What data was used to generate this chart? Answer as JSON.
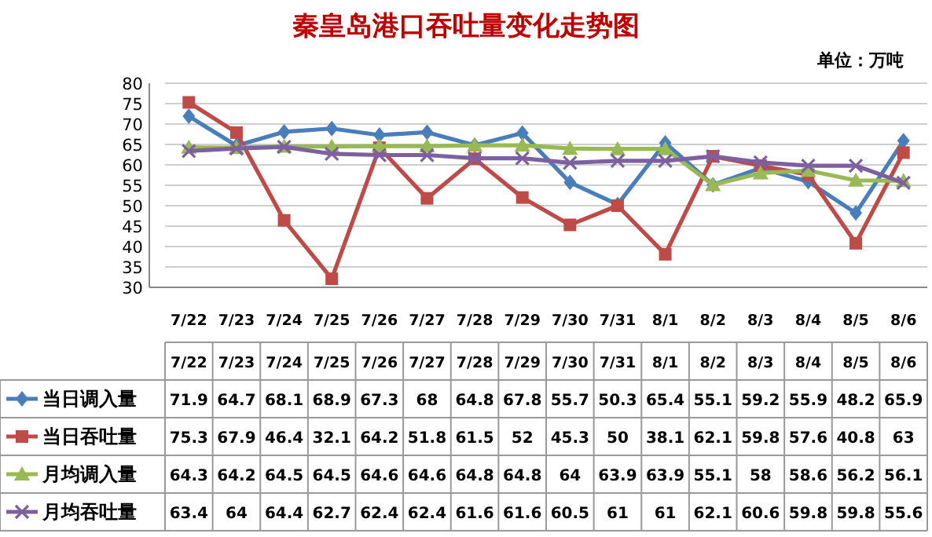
{
  "chart_data": {
    "type": "line",
    "title": "秦皇岛港口吞吐量变化走势图",
    "annotations": [
      "单位：万吨"
    ],
    "categories": [
      "7/22",
      "7/23",
      "7/24",
      "7/25",
      "7/26",
      "7/27",
      "7/28",
      "7/29",
      "7/30",
      "7/31",
      "8/1",
      "8/2",
      "8/3",
      "8/4",
      "8/5",
      "8/6"
    ],
    "series": [
      {
        "name": "当日调入量",
        "color": "#4a7ebb",
        "marker": "diamond",
        "values": [
          71.9,
          64.7,
          68.1,
          68.9,
          67.3,
          68,
          64.8,
          67.8,
          55.7,
          50.3,
          65.4,
          55.1,
          59.2,
          55.9,
          48.2,
          65.9
        ]
      },
      {
        "name": "当日吞吐量",
        "color": "#be4b48",
        "marker": "square",
        "values": [
          75.3,
          67.9,
          46.4,
          32.1,
          64.2,
          51.8,
          61.5,
          52,
          45.3,
          50,
          38.1,
          62.1,
          59.8,
          57.6,
          40.8,
          63
        ]
      },
      {
        "name": "月均调入量",
        "color": "#98b954",
        "marker": "triangle",
        "values": [
          64.3,
          64.2,
          64.5,
          64.5,
          64.6,
          64.6,
          64.8,
          64.8,
          64,
          63.9,
          63.9,
          55.1,
          58,
          58.6,
          56.2,
          56.1
        ]
      },
      {
        "name": "月均吞吐量",
        "color": "#7d60a0",
        "marker": "cross",
        "values": [
          63.4,
          64,
          64.4,
          62.7,
          62.4,
          62.4,
          61.6,
          61.6,
          60.5,
          61,
          61,
          62.1,
          60.6,
          59.8,
          59.8,
          55.6
        ]
      }
    ],
    "ylim": [
      30,
      80
    ],
    "yticks": [
      30,
      35,
      40,
      45,
      50,
      55,
      60,
      65,
      70,
      75,
      80
    ],
    "grid": "y",
    "data_labels": true,
    "legend": "bottom",
    "line_style": "solid"
  }
}
